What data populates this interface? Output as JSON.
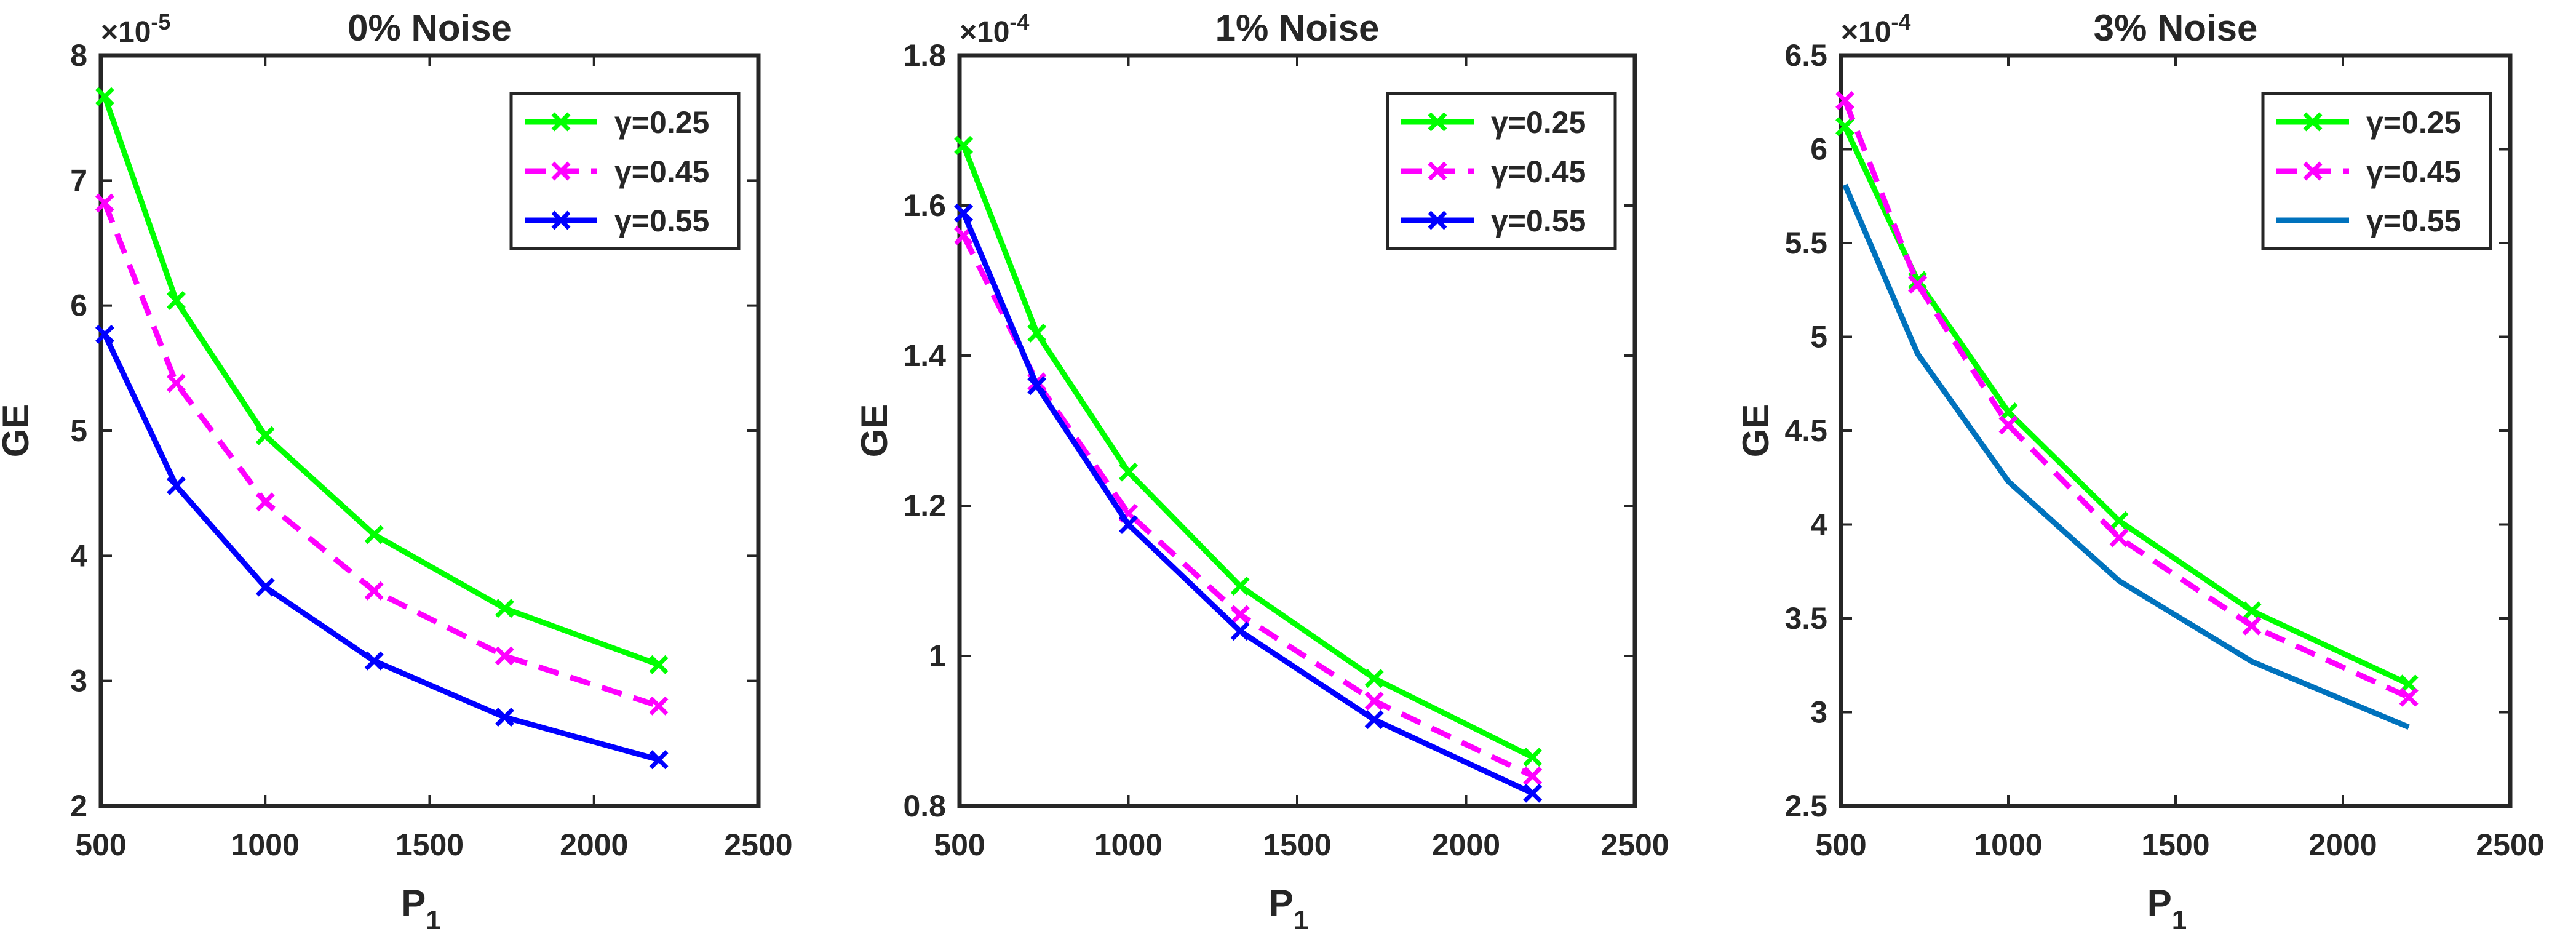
{
  "chart_data": [
    {
      "type": "line",
      "title": "0% Noise",
      "xlabel": "P",
      "xlabel_sub": "1",
      "ylabel": "GE",
      "exponent_label": "×10",
      "exponent_power": "-5",
      "xlim": [
        500,
        2500
      ],
      "ylim": [
        2,
        8
      ],
      "xticks": [
        "500",
        "1000",
        "1500",
        "2000",
        "2500"
      ],
      "yticks": [
        "2",
        "3",
        "4",
        "5",
        "6",
        "7",
        "8"
      ],
      "legend_position": "top-right",
      "x": [
        512,
        729,
        1000,
        1331,
        1728,
        2197
      ],
      "series": [
        {
          "name": "γ=0.25",
          "color": "#00ff00",
          "dash": "solid",
          "marker": "x",
          "values": [
            7.67,
            6.04,
            4.96,
            4.17,
            3.58,
            3.13
          ]
        },
        {
          "name": "γ=0.45",
          "color": "#ff00ff",
          "dash": "dashed",
          "marker": "x",
          "values": [
            6.82,
            5.38,
            4.43,
            3.72,
            3.2,
            2.8
          ]
        },
        {
          "name": "γ=0.55",
          "color": "#0000ff",
          "dash": "solid",
          "marker": "x",
          "values": [
            5.77,
            4.56,
            3.75,
            3.16,
            2.71,
            2.37
          ]
        }
      ]
    },
    {
      "type": "line",
      "title": "1% Noise",
      "xlabel": "P",
      "xlabel_sub": "1",
      "ylabel": "GE",
      "exponent_label": "×10",
      "exponent_power": "-4",
      "xlim": [
        500,
        2500
      ],
      "ylim": [
        0.8,
        1.8
      ],
      "xticks": [
        "500",
        "1000",
        "1500",
        "2000",
        "2500"
      ],
      "yticks": [
        "0.8",
        "1",
        "1.2",
        "1.4",
        "1.6",
        "1.8"
      ],
      "legend_position": "top-right",
      "x": [
        512,
        729,
        1000,
        1331,
        1728,
        2197
      ],
      "series": [
        {
          "name": "γ=0.25",
          "color": "#00ff00",
          "dash": "solid",
          "marker": "x",
          "values": [
            1.68,
            1.43,
            1.245,
            1.093,
            0.97,
            0.865
          ]
        },
        {
          "name": "γ=0.45",
          "color": "#ff00ff",
          "dash": "dashed",
          "marker": "x",
          "values": [
            1.56,
            1.365,
            1.19,
            1.055,
            0.94,
            0.84
          ]
        },
        {
          "name": "γ=0.55",
          "color": "#0000ff",
          "dash": "solid",
          "marker": "x",
          "values": [
            1.59,
            1.36,
            1.175,
            1.033,
            0.915,
            0.817
          ]
        }
      ]
    },
    {
      "type": "line",
      "title": "3% Noise",
      "xlabel": "P",
      "xlabel_sub": "1",
      "ylabel": "GE",
      "exponent_label": "×10",
      "exponent_power": "-4",
      "xlim": [
        500,
        2500
      ],
      "ylim": [
        2.5,
        6.5
      ],
      "xticks": [
        "500",
        "1000",
        "1500",
        "2000",
        "2500"
      ],
      "yticks": [
        "2.5",
        "3",
        "3.5",
        "4",
        "4.5",
        "5",
        "5.5",
        "6",
        "6.5"
      ],
      "legend_position": "top-right",
      "x": [
        512,
        729,
        1000,
        1331,
        1728,
        2197
      ],
      "series": [
        {
          "name": "γ=0.25",
          "color": "#00ff00",
          "dash": "solid",
          "marker": "x",
          "values": [
            6.12,
            5.3,
            4.6,
            4.02,
            3.54,
            3.15
          ]
        },
        {
          "name": "γ=0.45",
          "color": "#ff00ff",
          "dash": "dashed",
          "marker": "x",
          "values": [
            6.26,
            5.28,
            4.53,
            3.93,
            3.46,
            3.08
          ]
        },
        {
          "name": "γ=0.55",
          "color": "#0072bd",
          "dash": "solid",
          "marker": "none",
          "values": [
            5.81,
            4.91,
            4.23,
            3.7,
            3.27,
            2.92
          ]
        }
      ]
    }
  ]
}
